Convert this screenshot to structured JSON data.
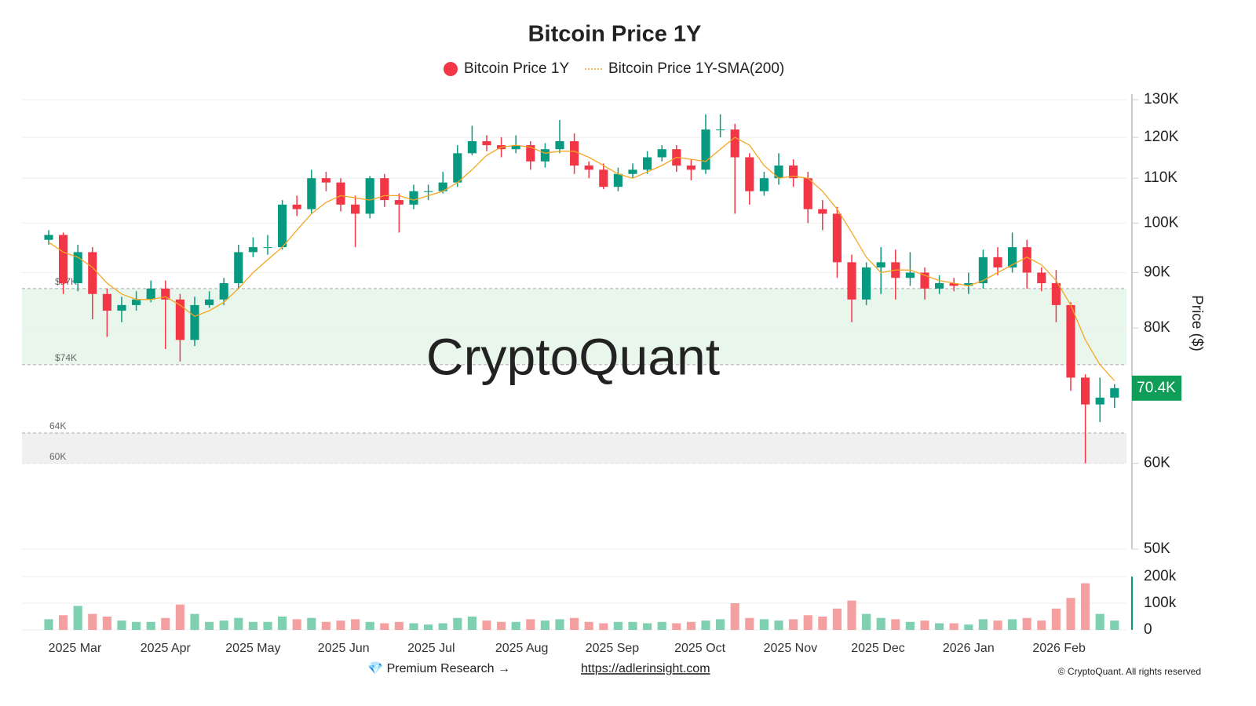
{
  "chart_data": {
    "type": "candlestick",
    "title": "Bitcoin Price 1Y",
    "log_scale": true,
    "grid": true,
    "ylabel": "Price ($)",
    "watermark": "CryptoQuant",
    "ylim": [
      50000,
      130000
    ],
    "yticks": [
      {
        "value": 50000,
        "label": "50K"
      },
      {
        "value": 60000,
        "label": "60K"
      },
      {
        "value": 80000,
        "label": "80K"
      },
      {
        "value": 90000,
        "label": "90K"
      },
      {
        "value": 100000,
        "label": "100K"
      },
      {
        "value": 110000,
        "label": "110K"
      },
      {
        "value": 120000,
        "label": "120K"
      },
      {
        "value": 130000,
        "label": "130K"
      }
    ],
    "xticks": [
      {
        "value": 1.8,
        "label": "2025 Mar"
      },
      {
        "value": 8,
        "label": "2025 Apr"
      },
      {
        "value": 14,
        "label": "2025 May"
      },
      {
        "value": 20.2,
        "label": "2025 Jun"
      },
      {
        "value": 26.2,
        "label": "2025 Jul"
      },
      {
        "value": 32.4,
        "label": "2025 Aug"
      },
      {
        "value": 38.6,
        "label": "2025 Sep"
      },
      {
        "value": 44.6,
        "label": "2025 Oct"
      },
      {
        "value": 50.8,
        "label": "2025 Nov"
      },
      {
        "value": 56.8,
        "label": "2025 Dec"
      },
      {
        "value": 63,
        "label": "2026 Jan"
      },
      {
        "value": 69.2,
        "label": "2026 Feb"
      }
    ],
    "series": [
      {
        "name": "Bitcoin Price 1Y",
        "color": "#f23645",
        "up_color": "#089981",
        "open": [
          96500,
          97500,
          88000,
          94000,
          86000,
          83000,
          84000,
          85000,
          87000,
          85000,
          78000,
          84000,
          85000,
          88000,
          94000,
          95000,
          95000,
          104000,
          103000,
          110000,
          109000,
          104000,
          102000,
          110000,
          105000,
          104000,
          107000,
          107000,
          109000,
          116000,
          119000,
          118000,
          117000,
          118000,
          114000,
          117000,
          119000,
          113000,
          112000,
          108000,
          111000,
          112000,
          115000,
          117000,
          113000,
          112000,
          122000,
          122000,
          115000,
          107000,
          110000,
          113000,
          110000,
          103000,
          102000,
          92000,
          85000,
          91000,
          92000,
          89000,
          90000,
          87000,
          88000,
          87500,
          88000,
          93000,
          91000,
          95000,
          90000,
          88000,
          84000,
          72000,
          68000,
          69000
        ],
        "high": [
          98500,
          98000,
          95500,
          95000,
          87000,
          85500,
          86500,
          88500,
          88500,
          86000,
          85500,
          86500,
          89000,
          95500,
          97000,
          97500,
          105000,
          106000,
          112000,
          111500,
          110000,
          106000,
          110500,
          111000,
          106500,
          108500,
          108500,
          111500,
          118000,
          123000,
          120500,
          120000,
          120500,
          119000,
          118500,
          124500,
          121000,
          114000,
          113500,
          112500,
          113500,
          116500,
          118000,
          118000,
          114500,
          126000,
          126000,
          123500,
          116000,
          111500,
          116000,
          114500,
          111500,
          105000,
          103500,
          93500,
          92000,
          95000,
          94500,
          94000,
          91000,
          89500,
          89000,
          90000,
          94500,
          95000,
          98000,
          96500,
          91000,
          90500,
          84500,
          72500,
          72000,
          71000
        ],
        "low": [
          95500,
          86000,
          86500,
          81500,
          78500,
          81000,
          83000,
          84500,
          76500,
          74500,
          77000,
          83500,
          84000,
          87000,
          93000,
          93500,
          94500,
          101500,
          102000,
          107000,
          102500,
          95000,
          101000,
          103500,
          98000,
          103000,
          105000,
          106500,
          108000,
          115500,
          116500,
          115000,
          116000,
          112000,
          112500,
          116000,
          111000,
          110000,
          107500,
          107000,
          110000,
          111000,
          114000,
          111500,
          109500,
          111000,
          120000,
          102000,
          104000,
          106000,
          108500,
          108000,
          100000,
          98500,
          89000,
          81000,
          84000,
          86000,
          85000,
          87500,
          85000,
          86000,
          86500,
          86000,
          87000,
          89500,
          90000,
          87000,
          86500,
          81000,
          70000,
          60000,
          65500,
          67500
        ],
        "close": [
          97500,
          88000,
          94000,
          86000,
          83000,
          84000,
          85000,
          87000,
          85000,
          78000,
          84000,
          85000,
          88000,
          94000,
          95000,
          95000,
          104000,
          103000,
          110000,
          109000,
          104000,
          102000,
          110000,
          105000,
          104000,
          107000,
          107000,
          109000,
          116000,
          119000,
          118000,
          117000,
          118000,
          114000,
          117000,
          119000,
          113000,
          112000,
          108000,
          111000,
          112000,
          115000,
          117000,
          113000,
          112000,
          122000,
          122000,
          115000,
          107000,
          110000,
          113000,
          110000,
          103000,
          102000,
          92000,
          85000,
          91000,
          92000,
          89000,
          90000,
          87000,
          88000,
          87500,
          88000,
          93000,
          91000,
          95000,
          90000,
          88000,
          84000,
          72000,
          68000,
          69000,
          70400
        ]
      },
      {
        "name": "Bitcoin Price 1Y-SMA(200)",
        "color": "#f5a623",
        "values": [
          96000,
          94000,
          93000,
          91000,
          88000,
          86000,
          85000,
          85000,
          85500,
          84000,
          82000,
          83000,
          84500,
          87000,
          90000,
          92500,
          95000,
          98500,
          102000,
          104500,
          106000,
          105500,
          105000,
          106000,
          106000,
          105000,
          106000,
          107000,
          109000,
          112000,
          115500,
          117500,
          118000,
          117500,
          116000,
          116500,
          116500,
          115000,
          113000,
          111000,
          110000,
          111500,
          113000,
          115000,
          114500,
          114000,
          117000,
          120000,
          118000,
          113000,
          110000,
          110500,
          110000,
          107000,
          103000,
          98000,
          93000,
          90000,
          90500,
          90500,
          89500,
          88500,
          88000,
          87500,
          88500,
          90000,
          91500,
          93000,
          91500,
          88500,
          84000,
          78000,
          74000,
          71500
        ]
      }
    ],
    "volume": {
      "color_up": "#7fd0b0",
      "color_down": "#f5a0a0",
      "axis_color": "#089981",
      "ylim": [
        0,
        200000
      ],
      "yticks": [
        0,
        {
          "value": 100000,
          "label": "100k"
        },
        {
          "value": 200000,
          "label": "200k"
        }
      ],
      "values": [
        40000,
        55000,
        90000,
        60000,
        50000,
        35000,
        30000,
        30000,
        45000,
        95000,
        60000,
        30000,
        35000,
        45000,
        30000,
        30000,
        50000,
        40000,
        45000,
        30000,
        35000,
        40000,
        30000,
        25000,
        30000,
        25000,
        20000,
        25000,
        45000,
        50000,
        35000,
        30000,
        30000,
        40000,
        35000,
        40000,
        45000,
        30000,
        25000,
        30000,
        30000,
        25000,
        30000,
        25000,
        30000,
        35000,
        40000,
        100000,
        45000,
        40000,
        35000,
        40000,
        55000,
        50000,
        80000,
        110000,
        60000,
        45000,
        40000,
        30000,
        35000,
        25000,
        25000,
        20000,
        40000,
        35000,
        40000,
        45000,
        35000,
        80000,
        120000,
        175000,
        60000,
        35000
      ]
    },
    "zones": [
      {
        "low": {
          "value": 74000,
          "label": "$74K"
        },
        "high": {
          "value": 87000,
          "label": "$87K"
        },
        "color": "#e8f6ec"
      },
      {
        "low": {
          "value": 60000,
          "label": "60K"
        },
        "high": {
          "value": 64000,
          "label": "64K"
        },
        "color": "#f0f0f0"
      }
    ],
    "last_price": {
      "value": 70400,
      "label": "70.4K",
      "color": "#0f9d58"
    }
  },
  "footer": {
    "note": "💎 Premium Research →",
    "link": "https://adlerinsight.com",
    "copyright": "© CryptoQuant. All rights reserved"
  }
}
